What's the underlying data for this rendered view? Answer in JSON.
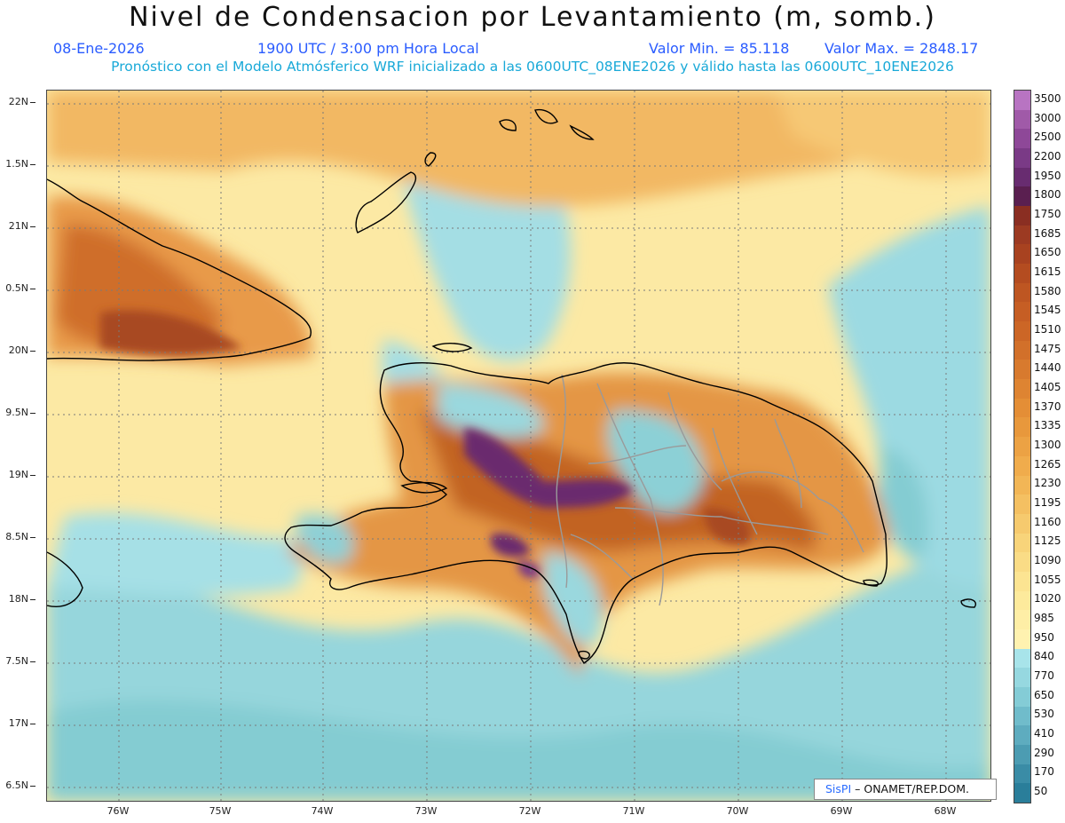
{
  "title": "Nivel de Condensacion por Levantamiento (m, somb.)",
  "date": "08-Ene-2026",
  "time": "1900 UTC / 3:00 pm Hora Local",
  "min_label": "Valor Min. = 85.118",
  "max_label": "Valor Max. = 2848.17",
  "description": "Pronóstico con el Modelo Atmósferico WRF inicializado a las 0600UTC_08ENE2026 y válido hasta las  0600UTC_10ENE2026",
  "lat_labels": [
    "22N",
    "1.5N",
    "21N",
    "0.5N",
    "20N",
    "9.5N",
    "19N",
    "8.5N",
    "18N",
    "7.5N",
    "17N",
    "6.5N"
  ],
  "lon_labels": [
    "76W",
    "75W",
    "74W",
    "73W",
    "72W",
    "71W",
    "70W",
    "69W",
    "68W"
  ],
  "legend_levels": [
    "3500",
    "3000",
    "2500",
    "2200",
    "1950",
    "1800",
    "1750",
    "1685",
    "1650",
    "1615",
    "1580",
    "1545",
    "1510",
    "1475",
    "1440",
    "1405",
    "1370",
    "1335",
    "1300",
    "1265",
    "1230",
    "1195",
    "1160",
    "1125",
    "1090",
    "1055",
    "1020",
    "985",
    "950",
    "840",
    "770",
    "650",
    "530",
    "410",
    "290",
    "170",
    "50"
  ],
  "legend_colors": [
    "#b874c2",
    "#a05aa8",
    "#8e4898",
    "#7a3a86",
    "#682c70",
    "#5a1f50",
    "#8a2e22",
    "#9c3a22",
    "#a84220",
    "#b44c20",
    "#be5622",
    "#c65e24",
    "#cc6626",
    "#d2702a",
    "#d87a2e",
    "#de8432",
    "#e48e36",
    "#e8983c",
    "#eca244",
    "#f0ac4c",
    "#f2b656",
    "#f4c062",
    "#f6ca6e",
    "#f8d47a",
    "#fadc86",
    "#fce492",
    "#fdea9c",
    "#feeea6",
    "#fff2b0",
    "#a8e4ea",
    "#96d8e0",
    "#84ccd6",
    "#70bccb",
    "#5eacbf",
    "#4c9cb2",
    "#3a8ca6",
    "#2a7e9a"
  ],
  "credit_logo": "SisPI",
  "credit_org": "– ONAMET/REP.DOM.",
  "map": {
    "colors": {
      "sea_low": "#9edee6",
      "mid": "#fbe7a0",
      "orange": "#f2b35c",
      "brown": "#c56a2c",
      "dark": "#8a3e1e",
      "purple": "#6a2c6e",
      "coast": "#000000",
      "border": "#9a9a9a"
    }
  }
}
